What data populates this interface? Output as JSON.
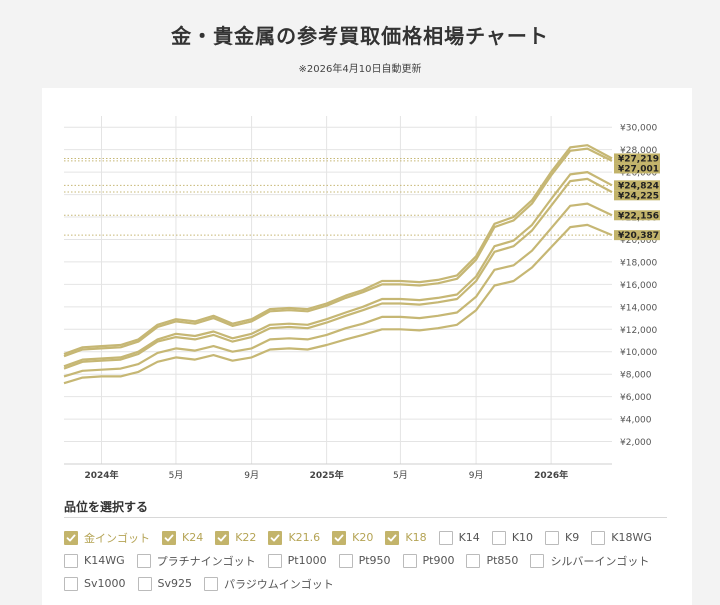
{
  "header": {
    "title": "金・貴金属の参考買取価格相場チャート",
    "updated": "※2026年4月10日自動更新"
  },
  "chart_data": {
    "type": "line",
    "ylim": [
      0,
      31000
    ],
    "x_range": [
      "2023-11-01",
      "2026-04-10"
    ],
    "y_ticks": [
      "¥2,000",
      "¥4,000",
      "¥6,000",
      "¥8,000",
      "¥10,000",
      "¥12,000",
      "¥14,000",
      "¥16,000",
      "¥18,000",
      "¥20,000",
      "¥22,000",
      "¥24,000",
      "¥26,000",
      "¥28,000",
      "¥30,000"
    ],
    "x_ticks": [
      {
        "date": "2024-01-01",
        "label": "2024年"
      },
      {
        "date": "2024-05-01",
        "label": "5月"
      },
      {
        "date": "2024-09-01",
        "label": "9月"
      },
      {
        "date": "2025-01-01",
        "label": "2025年"
      },
      {
        "date": "2025-05-01",
        "label": "5月"
      },
      {
        "date": "2025-09-01",
        "label": "9月"
      },
      {
        "date": "2026-01-01",
        "label": "2026年"
      }
    ],
    "x": [
      "2023-11-01",
      "2023-12-01",
      "2024-01-01",
      "2024-02-01",
      "2024-03-01",
      "2024-04-01",
      "2024-05-01",
      "2024-06-01",
      "2024-07-01",
      "2024-08-01",
      "2024-09-01",
      "2024-10-01",
      "2024-11-01",
      "2024-12-01",
      "2025-01-01",
      "2025-02-01",
      "2025-03-01",
      "2025-04-01",
      "2025-05-01",
      "2025-06-01",
      "2025-07-01",
      "2025-08-01",
      "2025-09-01",
      "2025-10-01",
      "2025-11-01",
      "2025-12-01",
      "2026-01-01",
      "2026-02-01",
      "2026-03-01",
      "2026-04-10"
    ],
    "series": [
      {
        "values": [
          9800,
          10400,
          10500,
          10600,
          11100,
          12400,
          12900,
          12700,
          13200,
          12500,
          12900,
          13800,
          13900,
          13800,
          14300,
          15000,
          15500,
          16300,
          16300,
          16200,
          16400,
          16800,
          18500,
          21400,
          22000,
          23500,
          26000,
          28200,
          28400,
          27219
        ]
      },
      {
        "values": [
          9600,
          10200,
          10300,
          10400,
          10900,
          12200,
          12700,
          12500,
          13000,
          12300,
          12700,
          13600,
          13700,
          13600,
          14100,
          14800,
          15300,
          16000,
          16000,
          15900,
          16100,
          16500,
          18200,
          21100,
          21700,
          23200,
          25700,
          27900,
          28100,
          27001
        ]
      },
      {
        "values": [
          8700,
          9300,
          9400,
          9500,
          10000,
          11100,
          11600,
          11400,
          11800,
          11200,
          11600,
          12400,
          12500,
          12400,
          12900,
          13500,
          14000,
          14700,
          14700,
          14600,
          14800,
          15100,
          16700,
          19400,
          19900,
          21300,
          23600,
          25800,
          26000,
          24824
        ]
      },
      {
        "values": [
          8500,
          9100,
          9200,
          9300,
          9800,
          10900,
          11300,
          11100,
          11500,
          10900,
          11300,
          12100,
          12200,
          12100,
          12600,
          13200,
          13700,
          14300,
          14300,
          14200,
          14400,
          14700,
          16300,
          18900,
          19400,
          20800,
          23000,
          25200,
          25400,
          24225
        ]
      },
      {
        "values": [
          7800,
          8300,
          8400,
          8500,
          8900,
          9900,
          10300,
          10100,
          10500,
          10000,
          10300,
          11100,
          11200,
          11100,
          11500,
          12100,
          12500,
          13100,
          13100,
          13000,
          13200,
          13500,
          14900,
          17300,
          17700,
          19000,
          21000,
          23000,
          23200,
          22156
        ]
      },
      {
        "values": [
          7200,
          7700,
          7800,
          7800,
          8200,
          9100,
          9500,
          9300,
          9700,
          9200,
          9500,
          10200,
          10300,
          10200,
          10600,
          11100,
          11500,
          12000,
          12000,
          11900,
          12100,
          12400,
          13700,
          15900,
          16300,
          17500,
          19300,
          21100,
          21300,
          20387
        ]
      }
    ],
    "end_labels": [
      "¥27,219",
      "¥27,001",
      "¥24,824",
      "¥24,225",
      "¥22,156",
      "¥20,387"
    ],
    "line_color": "#c6b774",
    "label_bg": "#c2b36a",
    "grid": true
  },
  "grades": {
    "heading": "品位を選択する",
    "rows": [
      [
        {
          "label": "金インゴット",
          "checked": true
        },
        {
          "label": "K24",
          "checked": true
        },
        {
          "label": "K22",
          "checked": true
        },
        {
          "label": "K21.6",
          "checked": true
        },
        {
          "label": "K20",
          "checked": true
        },
        {
          "label": "K18",
          "checked": true
        },
        {
          "label": "K14",
          "checked": false
        },
        {
          "label": "K10",
          "checked": false
        },
        {
          "label": "K9",
          "checked": false
        },
        {
          "label": "K18WG",
          "checked": false
        }
      ],
      [
        {
          "label": "K14WG",
          "checked": false
        },
        {
          "label": "プラチナインゴット",
          "checked": false
        },
        {
          "label": "Pt1000",
          "checked": false
        },
        {
          "label": "Pt950",
          "checked": false
        },
        {
          "label": "Pt900",
          "checked": false
        },
        {
          "label": "Pt850",
          "checked": false
        },
        {
          "label": "シルバーインゴット",
          "checked": false
        }
      ],
      [
        {
          "label": "Sv1000",
          "checked": false
        },
        {
          "label": "Sv925",
          "checked": false
        },
        {
          "label": "パラジウムインゴット",
          "checked": false
        }
      ]
    ]
  }
}
